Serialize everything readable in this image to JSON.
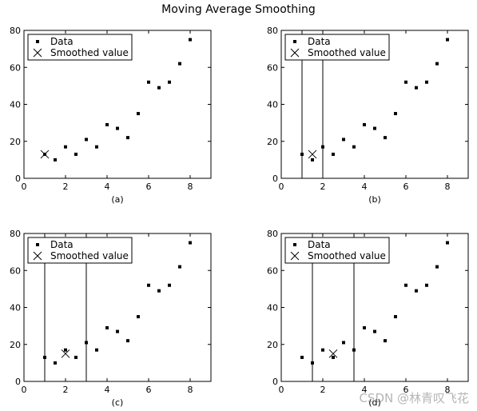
{
  "title": "Moving Average Smoothing",
  "watermark": "CSDN @林青叹飞花",
  "legend_labels": {
    "data": "Data",
    "smoothed": "Smoothed value"
  },
  "chart_data": [
    {
      "type": "scatter",
      "panel_label": "(a)",
      "xlim": [
        0,
        9
      ],
      "ylim": [
        0,
        80
      ],
      "xticks": [
        0,
        2,
        4,
        6,
        8
      ],
      "yticks": [
        0,
        20,
        40,
        60,
        80
      ],
      "legend": "top-left",
      "series": [
        {
          "name": "Data",
          "marker": "point",
          "x": [
            1,
            1.5,
            2,
            2.5,
            3,
            3.5,
            4,
            4.5,
            5,
            5.5,
            6,
            6.5,
            7,
            7.5,
            8
          ],
          "y": [
            13,
            10,
            17,
            13,
            21,
            17,
            29,
            27,
            22,
            35,
            52,
            49,
            52,
            62,
            75
          ]
        },
        {
          "name": "Smoothed value",
          "marker": "x",
          "x": [
            1
          ],
          "y": [
            13
          ]
        }
      ],
      "window": []
    },
    {
      "type": "scatter",
      "panel_label": "(b)",
      "xlim": [
        0,
        9
      ],
      "ylim": [
        0,
        80
      ],
      "xticks": [
        0,
        2,
        4,
        6,
        8
      ],
      "yticks": [
        0,
        20,
        40,
        60,
        80
      ],
      "legend": "top-left",
      "series": [
        {
          "name": "Data",
          "marker": "point",
          "x": [
            1,
            1.5,
            2,
            2.5,
            3,
            3.5,
            4,
            4.5,
            5,
            5.5,
            6,
            6.5,
            7,
            7.5,
            8
          ],
          "y": [
            13,
            10,
            17,
            13,
            21,
            17,
            29,
            27,
            22,
            35,
            52,
            49,
            52,
            62,
            75
          ]
        },
        {
          "name": "Smoothed value",
          "marker": "x",
          "x": [
            1.5
          ],
          "y": [
            13
          ]
        }
      ],
      "window": [
        1,
        2
      ]
    },
    {
      "type": "scatter",
      "panel_label": "(c)",
      "xlim": [
        0,
        9
      ],
      "ylim": [
        0,
        80
      ],
      "xticks": [
        0,
        2,
        4,
        6,
        8
      ],
      "yticks": [
        0,
        20,
        40,
        60,
        80
      ],
      "legend": "top-left",
      "series": [
        {
          "name": "Data",
          "marker": "point",
          "x": [
            1,
            1.5,
            2,
            2.5,
            3,
            3.5,
            4,
            4.5,
            5,
            5.5,
            6,
            6.5,
            7,
            7.5,
            8
          ],
          "y": [
            13,
            10,
            17,
            13,
            21,
            17,
            29,
            27,
            22,
            35,
            52,
            49,
            52,
            62,
            75
          ]
        },
        {
          "name": "Smoothed value",
          "marker": "x",
          "x": [
            2
          ],
          "y": [
            15
          ]
        }
      ],
      "window": [
        1,
        3
      ]
    },
    {
      "type": "scatter",
      "panel_label": "(d)",
      "xlim": [
        0,
        9
      ],
      "ylim": [
        0,
        80
      ],
      "xticks": [
        0,
        2,
        4,
        6,
        8
      ],
      "yticks": [
        0,
        20,
        40,
        60,
        80
      ],
      "legend": "top-left",
      "series": [
        {
          "name": "Data",
          "marker": "point",
          "x": [
            1,
            1.5,
            2,
            2.5,
            3,
            3.5,
            4,
            4.5,
            5,
            5.5,
            6,
            6.5,
            7,
            7.5,
            8
          ],
          "y": [
            13,
            10,
            17,
            13,
            21,
            17,
            29,
            27,
            22,
            35,
            52,
            49,
            52,
            62,
            75
          ]
        },
        {
          "name": "Smoothed value",
          "marker": "x",
          "x": [
            2.5
          ],
          "y": [
            15
          ]
        }
      ],
      "window": [
        1.5,
        3.5
      ]
    }
  ]
}
